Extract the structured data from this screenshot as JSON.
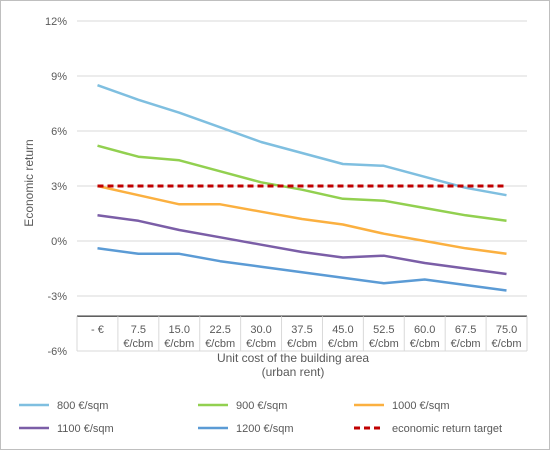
{
  "chart_data": {
    "type": "line",
    "xlabel_lines": [
      "Unit cost of the building area",
      "(urban rent)"
    ],
    "ylabel": "Economic return",
    "categories": [
      [
        "- €"
      ],
      [
        "7.5",
        "€/cbm"
      ],
      [
        "15.0",
        "€/cbm"
      ],
      [
        "22.5",
        "€/cbm"
      ],
      [
        "30.0",
        "€/cbm"
      ],
      [
        "37.5",
        "€/cbm"
      ],
      [
        "45.0",
        "€/cbm"
      ],
      [
        "52.5",
        "€/cbm"
      ],
      [
        "60.0",
        "€/cbm"
      ],
      [
        "67.5",
        "€/cbm"
      ],
      [
        "75.0",
        "€/cbm"
      ]
    ],
    "y_ticks": [
      -6,
      -3,
      0,
      3,
      6,
      9,
      12
    ],
    "y_tick_labels": [
      "-6%",
      "-3%",
      "0%",
      "3%",
      "6%",
      "9%",
      "12%"
    ],
    "ylim": [
      -6,
      12
    ],
    "gridlines": "horizontal",
    "legend_position": "bottom",
    "series": [
      {
        "name": "800 €/sqm",
        "color": "#7fbfe0",
        "dashed": false,
        "values": [
          8.5,
          7.7,
          7.0,
          6.2,
          5.4,
          4.8,
          4.2,
          4.1,
          3.5,
          2.9,
          2.5
        ]
      },
      {
        "name": "900 €/sqm",
        "color": "#92d050",
        "dashed": false,
        "values": [
          5.2,
          4.6,
          4.4,
          3.8,
          3.2,
          2.8,
          2.3,
          2.2,
          1.8,
          1.4,
          1.1
        ]
      },
      {
        "name": "1000 €/sqm",
        "color": "#fbb040",
        "dashed": false,
        "values": [
          3.0,
          2.5,
          2.0,
          2.0,
          1.6,
          1.2,
          0.9,
          0.4,
          0.0,
          -0.4,
          -0.7
        ]
      },
      {
        "name": "1100 €/sqm",
        "color": "#7b5ea7",
        "dashed": false,
        "values": [
          1.4,
          1.1,
          0.6,
          0.2,
          -0.2,
          -0.6,
          -0.9,
          -0.8,
          -1.2,
          -1.5,
          -1.8
        ]
      },
      {
        "name": "1200 €/sqm",
        "color": "#5b9bd5",
        "dashed": false,
        "values": [
          -0.4,
          -0.7,
          -0.7,
          -1.1,
          -1.4,
          -1.7,
          -2.0,
          -2.3,
          -2.1,
          -2.4,
          -2.7
        ]
      },
      {
        "name": "economic return target",
        "color": "#c00000",
        "dashed": true,
        "values": [
          3.0,
          3.0,
          3.0,
          3.0,
          3.0,
          3.0,
          3.0,
          3.0,
          3.0,
          3.0,
          3.0
        ]
      }
    ]
  }
}
